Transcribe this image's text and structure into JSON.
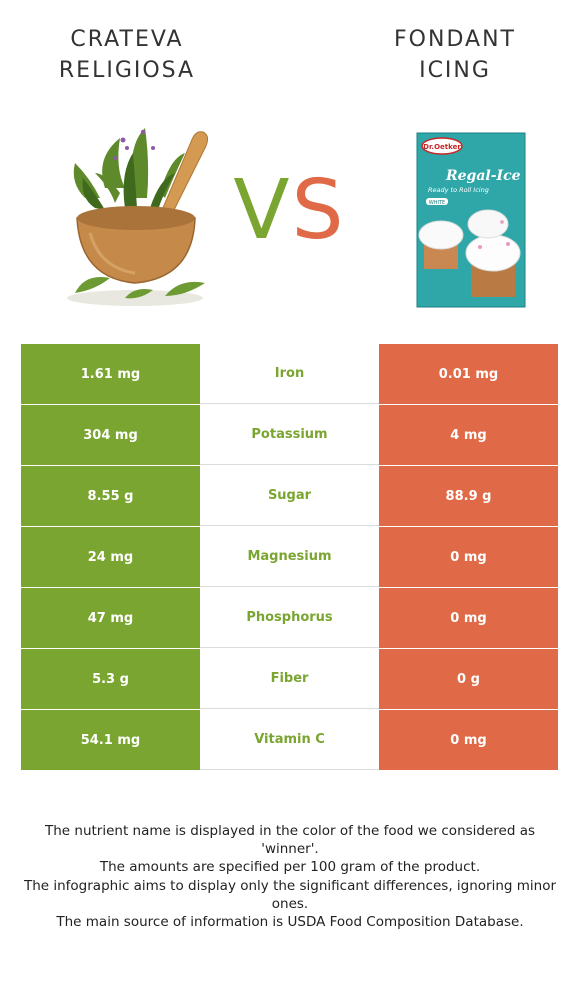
{
  "header": {
    "left_title_line1": "CRATEVA",
    "left_title_line2": "RELIGIOSA",
    "right_title_line1": "FONDANT",
    "right_title_line2": "ICING",
    "vs_v": "V",
    "vs_s": "S"
  },
  "package": {
    "brand": "Dr.Oetker",
    "name": "Regal-Ice",
    "tagline": "Ready to Roll Icing",
    "variant": "WHITE"
  },
  "colors": {
    "winner_left": "#7aa530",
    "winner_right": "#e06a47"
  },
  "rows": [
    {
      "left": "1.61 mg",
      "nutrient": "Iron",
      "right": "0.01 mg"
    },
    {
      "left": "304 mg",
      "nutrient": "Potassium",
      "right": "4 mg"
    },
    {
      "left": "8.55 g",
      "nutrient": "Sugar",
      "right": "88.9 g"
    },
    {
      "left": "24 mg",
      "nutrient": "Magnesium",
      "right": "0 mg"
    },
    {
      "left": "47 mg",
      "nutrient": "Phosphorus",
      "right": "0 mg"
    },
    {
      "left": "5.3 g",
      "nutrient": "Fiber",
      "right": "0 g"
    },
    {
      "left": "54.1 mg",
      "nutrient": "Vitamin C",
      "right": "0 mg"
    }
  ],
  "notes": [
    "The nutrient name is displayed in the color of the food we considered as 'winner'.",
    "The amounts are specified per 100 gram of the product.",
    "The infographic aims to display only the significant differences, ignoring minor ones.",
    "The main source of information is USDA Food Composition Database."
  ]
}
